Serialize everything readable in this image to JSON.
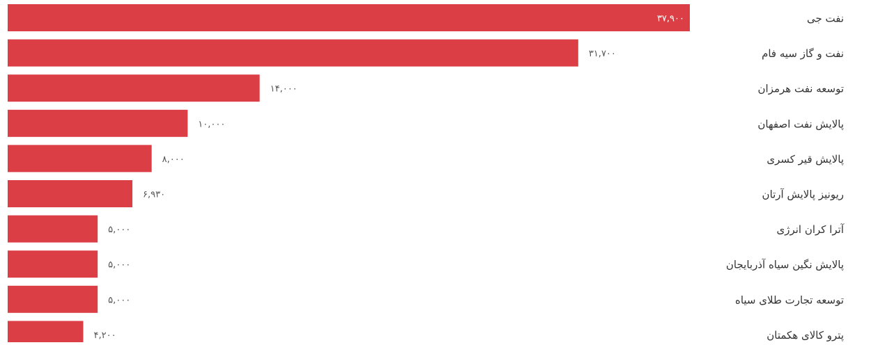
{
  "chart_data": {
    "type": "bar",
    "orientation": "horizontal",
    "bar_color": "#dc3e45",
    "value_label_color": "#555555",
    "category_label_color": "#333333",
    "title": "",
    "xlabel": "",
    "ylabel": "",
    "xlim": [
      0,
      37900
    ],
    "grid": false,
    "legend": "none",
    "categories": [
      "نفت جی",
      "نفت و گاز سیه فام",
      "توسعه نفت هرمزان",
      "پالایش نفت اصفهان",
      "پالایش قیر کسری",
      "ریونیز پالایش آرتان",
      "آترا کران انرژی",
      "پالایش نگین سیاه آذربایجان",
      "توسعه تجارت طلای سیاه",
      "پترو کالای هکمتان"
    ],
    "values": [
      37900,
      31700,
      14000,
      10000,
      8000,
      6930,
      5000,
      5000,
      5000,
      4200
    ],
    "value_labels": [
      "۳۷,۹۰۰",
      "۳۱,۷۰۰",
      "۱۴,۰۰۰",
      "۱۰,۰۰۰",
      "۸,۰۰۰",
      "۶,۹۳۰",
      "۵,۰۰۰",
      "۵,۰۰۰",
      "۵,۰۰۰",
      "۴,۲۰۰"
    ]
  }
}
